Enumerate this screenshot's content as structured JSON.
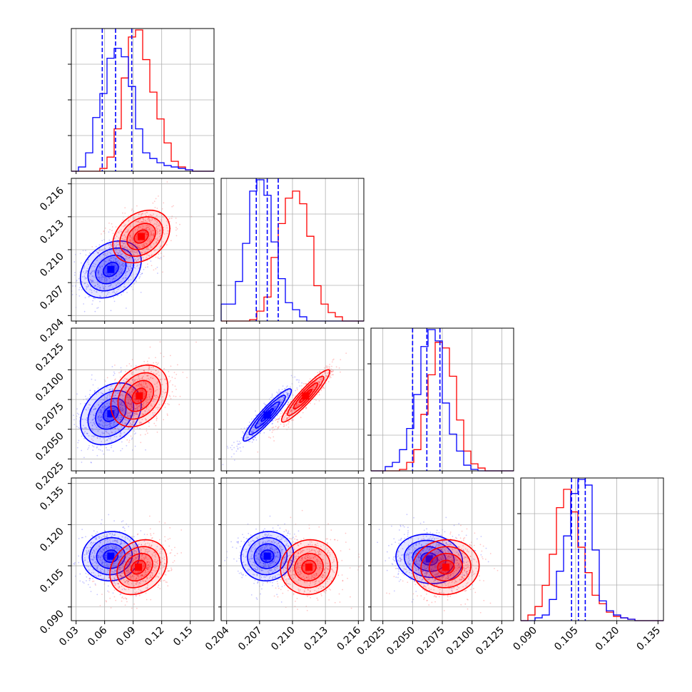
{
  "chart_data": {
    "type": "corner",
    "grid": true,
    "colors": {
      "blue": "#0000ff",
      "red": "#ff0000",
      "grid": "#b0b0b0",
      "frame": "#000000"
    },
    "params": [
      {
        "range": [
          0.025,
          0.175
        ],
        "ticks": [
          0.03,
          0.06,
          0.09,
          0.12,
          0.15
        ],
        "tick_labels": [
          "0.03",
          "0.06",
          "0.09",
          "0.12",
          "0.15"
        ]
      },
      {
        "range": [
          0.2035,
          0.2165
        ],
        "ticks": [
          0.204,
          0.207,
          0.21,
          0.213,
          0.216
        ],
        "tick_labels": [
          "0.204",
          "0.207",
          "0.210",
          "0.213",
          "0.216"
        ]
      },
      {
        "range": [
          0.2015,
          0.2135
        ],
        "ticks": [
          0.2025,
          0.205,
          0.2075,
          0.21,
          0.2125
        ],
        "tick_labels": [
          "0.2025",
          "0.2050",
          "0.2075",
          "0.2100",
          "0.2125"
        ]
      },
      {
        "range": [
          0.085,
          0.137
        ],
        "ticks": [
          0.09,
          0.105,
          0.12,
          0.135
        ],
        "tick_labels": [
          "0.090",
          "0.105",
          "0.120",
          "0.135"
        ]
      }
    ],
    "marginals": [
      {
        "hist_blue": [
          0,
          0.03,
          0.13,
          0.38,
          0.55,
          0.8,
          0.87,
          0.81,
          0.6,
          0.3,
          0.13,
          0.09,
          0.06,
          0.04,
          0.03,
          0.02,
          0.01,
          0,
          0,
          0
        ],
        "hist_red": [
          0,
          0,
          0,
          0,
          0.02,
          0.1,
          0.3,
          0.66,
          0.95,
          1.0,
          0.79,
          0.56,
          0.37,
          0.2,
          0.07,
          0.03,
          0.01,
          0,
          0,
          0
        ],
        "quantiles_blue": [
          0.0575,
          0.0715,
          0.0885
        ]
      },
      {
        "hist_blue": [
          0.12,
          0.12,
          0.28,
          0.55,
          0.92,
          1.0,
          0.89,
          0.56,
          0.3,
          0.13,
          0.08,
          0.03,
          0,
          0,
          0,
          0,
          0,
          0,
          0,
          0
        ],
        "hist_red": [
          0,
          0,
          0,
          0,
          0.01,
          0.07,
          0.17,
          0.45,
          0.69,
          0.87,
          0.92,
          0.83,
          0.6,
          0.25,
          0.12,
          0.06,
          0.03,
          0,
          0,
          0
        ],
        "quantiles_blue": [
          0.2067,
          0.2077,
          0.2087
        ]
      },
      {
        "hist_blue": [
          0,
          0,
          0.03,
          0.06,
          0.15,
          0.3,
          0.54,
          0.88,
          1.0,
          0.92,
          0.48,
          0.26,
          0.14,
          0.04,
          0.01,
          0,
          0,
          0,
          0,
          0
        ],
        "hist_red": [
          0,
          0,
          0,
          0,
          0.01,
          0.06,
          0.15,
          0.4,
          0.68,
          0.91,
          0.87,
          0.67,
          0.36,
          0.14,
          0.05,
          0.02,
          0,
          0,
          0,
          0
        ],
        "quantiles_blue": [
          0.205,
          0.2062,
          0.2073
        ]
      },
      {
        "hist_blue": [
          0,
          0,
          0.02,
          0.04,
          0.15,
          0.35,
          0.6,
          0.9,
          1.0,
          0.96,
          0.5,
          0.14,
          0.07,
          0.04,
          0.02,
          0.01,
          0,
          0,
          0,
          0
        ],
        "hist_red": [
          0,
          0.04,
          0.1,
          0.25,
          0.47,
          0.8,
          0.93,
          0.77,
          0.52,
          0.34,
          0.18,
          0.12,
          0.06,
          0.03,
          0.02,
          0.01,
          0,
          0,
          0,
          0
        ],
        "quantiles_blue": [
          0.1035,
          0.106,
          0.1085
        ]
      }
    ],
    "blobs": [
      {
        "row": 1,
        "col": 0,
        "blue": {
          "mean": [
            0.0665,
            0.2082
          ],
          "sd": [
            0.016,
            0.0013
          ],
          "rho": 0.3
        },
        "red": {
          "mean": [
            0.0985,
            0.2112
          ],
          "sd": [
            0.015,
            0.0012
          ],
          "rho": 0.3
        }
      },
      {
        "row": 2,
        "col": 0,
        "blue": {
          "mean": [
            0.0665,
            0.2063
          ],
          "sd": [
            0.016,
            0.0013
          ],
          "rho": 0.3
        },
        "red": {
          "mean": [
            0.0965,
            0.2078
          ],
          "sd": [
            0.015,
            0.0013
          ],
          "rho": 0.3
        }
      },
      {
        "row": 2,
        "col": 1,
        "blue": {
          "mean": [
            0.2077,
            0.2062
          ],
          "sd": [
            0.0011,
            0.0011
          ],
          "rho": 0.93
        },
        "red": {
          "mean": [
            0.2112,
            0.2078
          ],
          "sd": [
            0.0011,
            0.0011
          ],
          "rho": 0.93
        }
      },
      {
        "row": 3,
        "col": 0,
        "blue": {
          "mean": [
            0.0665,
            0.1085
          ],
          "sd": [
            0.015,
            0.0045
          ],
          "rho": 0.05
        },
        "red": {
          "mean": [
            0.0955,
            0.1045
          ],
          "sd": [
            0.015,
            0.005
          ],
          "rho": 0.25
        }
      },
      {
        "row": 3,
        "col": 1,
        "blue": {
          "mean": [
            0.2077,
            0.1085
          ],
          "sd": [
            0.0012,
            0.0045
          ],
          "rho": 0.05
        },
        "red": {
          "mean": [
            0.2115,
            0.1045
          ],
          "sd": [
            0.0013,
            0.005
          ],
          "rho": 0.05
        }
      },
      {
        "row": 3,
        "col": 2,
        "blue": {
          "mean": [
            0.2064,
            0.1075
          ],
          "sd": [
            0.0014,
            0.0045
          ],
          "rho": -0.1
        },
        "red": {
          "mean": [
            0.2078,
            0.1045
          ],
          "sd": [
            0.0014,
            0.005
          ],
          "rho": 0.05
        }
      }
    ]
  }
}
